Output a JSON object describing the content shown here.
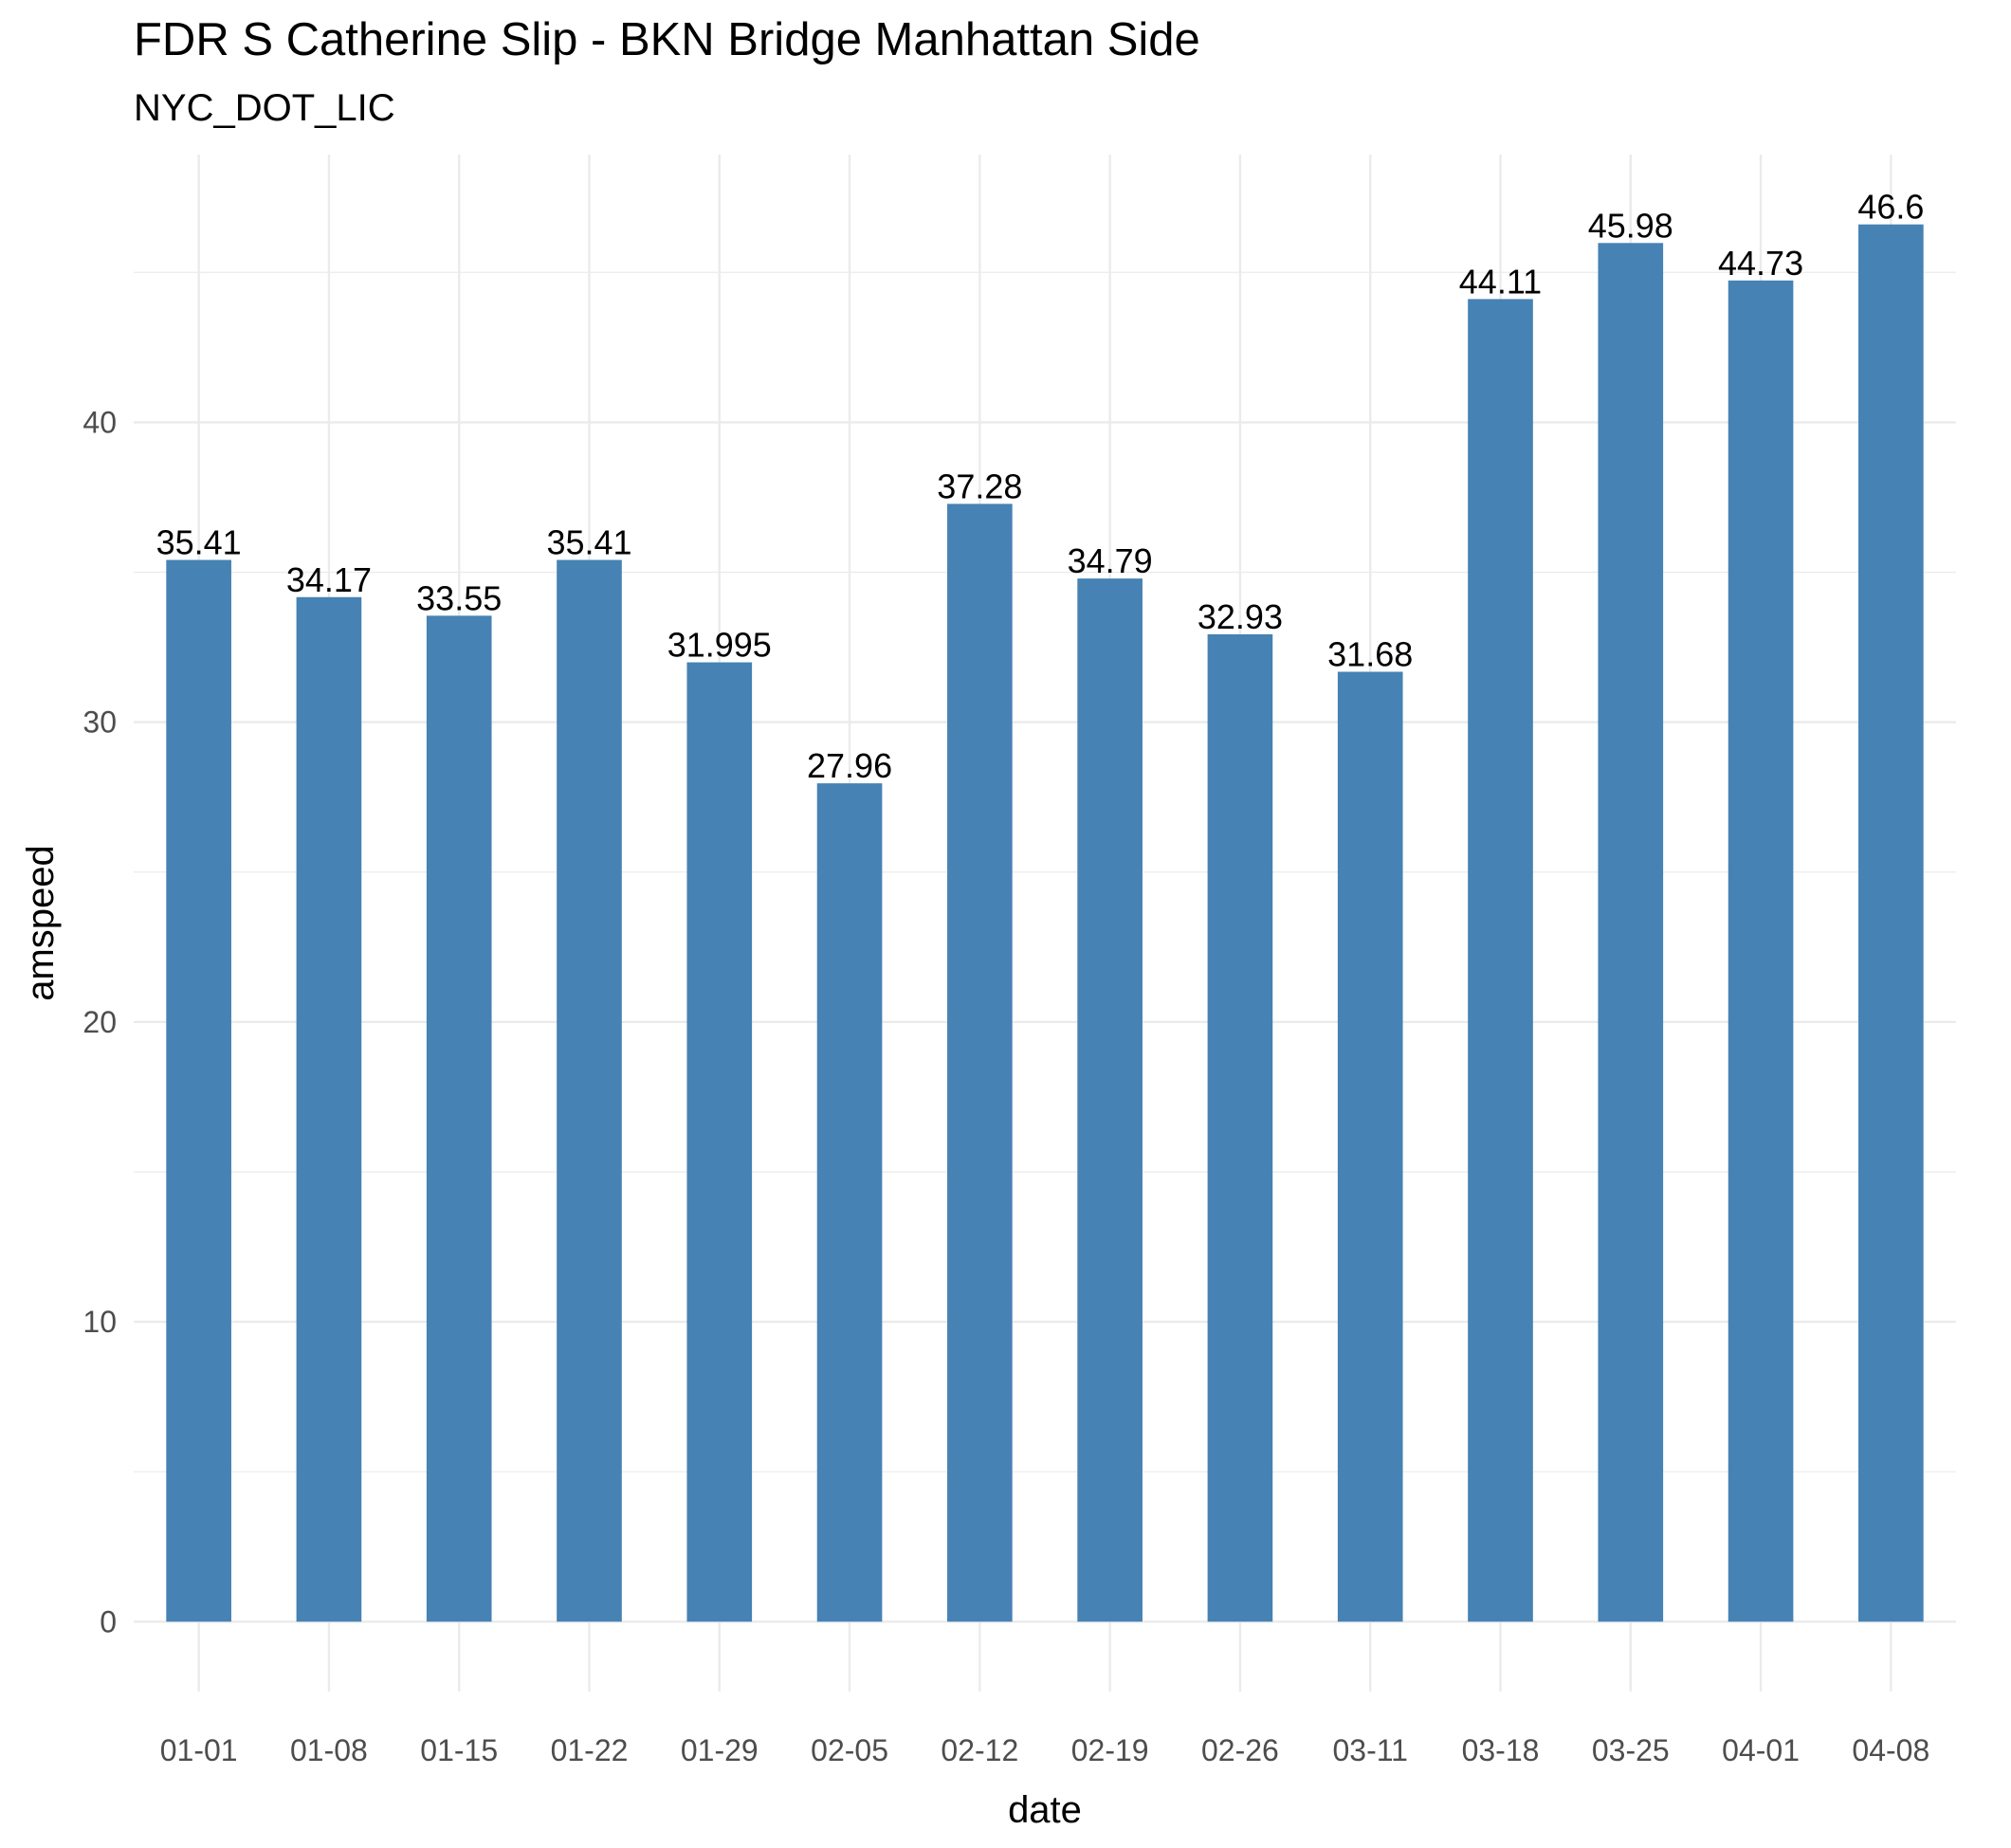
{
  "chart_data": {
    "type": "bar",
    "title": "FDR S Catherine Slip - BKN Bridge Manhattan Side",
    "subtitle": "NYC_DOT_LIC",
    "xlabel": "date",
    "ylabel": "amspeed",
    "categories": [
      "01-01",
      "01-08",
      "01-15",
      "01-22",
      "01-29",
      "02-05",
      "02-12",
      "02-19",
      "02-26",
      "03-11",
      "03-18",
      "03-25",
      "04-01",
      "04-08"
    ],
    "values": [
      35.41,
      34.17,
      33.55,
      35.41,
      31.995,
      27.96,
      37.28,
      34.79,
      32.93,
      31.68,
      44.11,
      45.98,
      44.73,
      46.6
    ],
    "data_labels": [
      "35.41",
      "34.17",
      "33.55",
      "35.41",
      "31.995",
      "27.96",
      "37.28",
      "34.79",
      "32.93",
      "31.68",
      "44.11",
      "45.98",
      "44.73",
      "46.6"
    ],
    "yticks": [
      0,
      10,
      20,
      30,
      40
    ],
    "ylim": [
      -2.33,
      48.93
    ],
    "grid": true,
    "legend": "none",
    "bar_color": "#4682b4",
    "grid_color": "#ebebeb"
  }
}
